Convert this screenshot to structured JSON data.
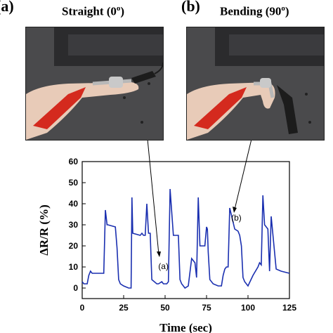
{
  "panels": [
    {
      "letter": "(a)",
      "title_main": "Straight (0",
      "title_sup": "o",
      "title_end": ")"
    },
    {
      "letter": "(b)",
      "title_main": "Bending (90",
      "title_sup": "o",
      "title_end": ")"
    }
  ],
  "colors": {
    "line": "#1a2fb0",
    "photo_bg": "#4a4a4c",
    "red_clip": "#d42a1e",
    "black_clip": "#1c1c1c",
    "skin": "#e8cbb8"
  },
  "chart_data": {
    "type": "line",
    "xlabel": "Time (sec)",
    "ylabel": "ΔR/R (%)",
    "xlim": [
      0,
      125
    ],
    "ylim": [
      -5,
      60
    ],
    "xticks": [
      0,
      25,
      50,
      75,
      100,
      125
    ],
    "yticks": [
      0,
      10,
      20,
      30,
      40,
      50,
      60
    ],
    "grid": false,
    "series": [
      {
        "x": [
          0,
          1,
          3,
          4,
          5,
          6,
          10,
          13,
          14,
          15,
          15.5,
          20,
          21,
          22,
          23,
          25,
          28,
          29.5,
          30,
          30.5,
          35,
          36,
          37,
          38,
          39,
          40,
          41,
          42,
          45,
          46,
          48,
          49,
          50,
          51,
          52,
          53,
          55,
          57,
          58,
          59,
          60,
          61,
          62,
          64,
          66,
          68,
          69,
          70,
          71,
          72,
          74,
          75,
          75.5,
          76,
          77,
          79,
          82,
          84,
          85,
          86,
          87,
          88,
          89,
          92,
          94,
          95,
          96,
          97,
          98,
          100,
          103,
          106,
          107,
          108,
          109,
          110,
          111,
          112,
          113,
          114,
          117,
          120,
          125
        ],
        "y": [
          3,
          2,
          2,
          6,
          8,
          7,
          7,
          7,
          37,
          30,
          30,
          29,
          19,
          4,
          2,
          1,
          0,
          0,
          43,
          26,
          25,
          26,
          25,
          25,
          40,
          26,
          26,
          4,
          2,
          2,
          3,
          2,
          2,
          2,
          3,
          47,
          25,
          25,
          25,
          4,
          2,
          1,
          0,
          1,
          14,
          12,
          5,
          43,
          20,
          20,
          20,
          29,
          28,
          17,
          4,
          2,
          1,
          1,
          6,
          9,
          10,
          10,
          38,
          28,
          27,
          25,
          20,
          5,
          3,
          1,
          6,
          10,
          12,
          11,
          44,
          30,
          29,
          28,
          8,
          34,
          9,
          8,
          7
        ]
      }
    ],
    "annotations": [
      {
        "text": "(a)",
        "x": 49,
        "y": 9
      },
      {
        "text": "(b)",
        "x": 93,
        "y": 32
      }
    ]
  }
}
